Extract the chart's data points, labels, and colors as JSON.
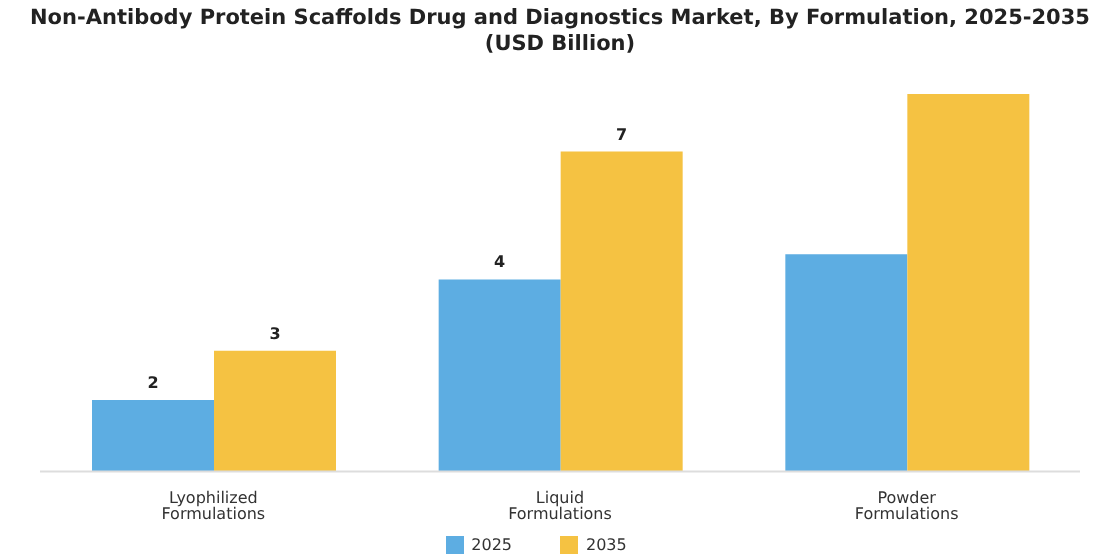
{
  "chart_data": {
    "type": "bar",
    "title": "Non-Antibody Protein Scaffolds Drug and Diagnostics Market, By Formulation, 2025-2035 (USD Billion)",
    "categories": [
      "Lyophilized Formulations",
      "Liquid Formulations",
      "Powder Formulations"
    ],
    "series": [
      {
        "name": "2025",
        "color": "#5dade2",
        "values": [
          1.56,
          4.2,
          4.75
        ],
        "value_labels": [
          "2",
          "4",
          null
        ]
      },
      {
        "name": "2035",
        "color": "#f5c242",
        "values": [
          2.64,
          7.0,
          8.26
        ],
        "value_labels": [
          "3",
          "7",
          null
        ]
      }
    ],
    "legend": "bottom",
    "grid": false
  }
}
